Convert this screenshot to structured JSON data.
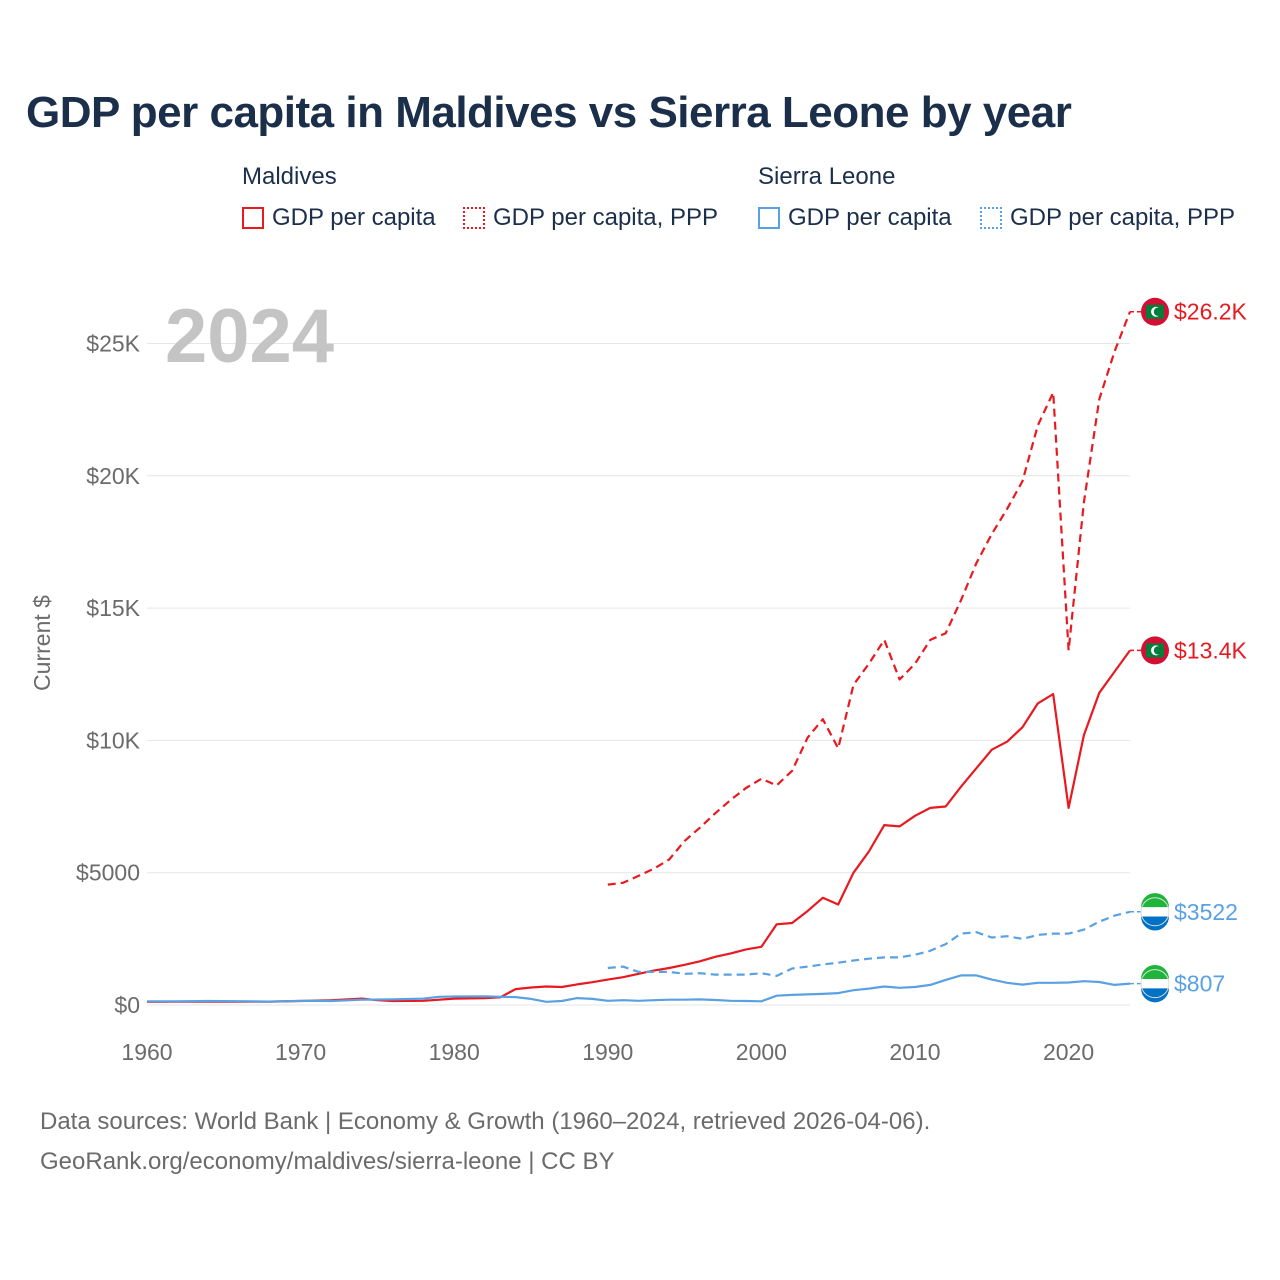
{
  "title": "GDP per capita in Maldives vs Sierra Leone by year",
  "legend": {
    "groups": [
      {
        "name": "Maldives",
        "items": [
          {
            "label": "GDP per capita",
            "color": "#e8191f",
            "style": "solid"
          },
          {
            "label": "GDP per capita, PPP",
            "color": "#e8191f",
            "style": "dotted"
          }
        ]
      },
      {
        "name": "Sierra Leone",
        "items": [
          {
            "label": "GDP per capita",
            "color": "#5aa1e3",
            "style": "solid"
          },
          {
            "label": "GDP per capita, PPP",
            "color": "#5aa1e3",
            "style": "dotted"
          }
        ]
      }
    ]
  },
  "footer": {
    "line1": "Data sources: World Bank | Economy & Growth (1960–2024, retrieved 2026-04-06).",
    "line2": "GeoRank.org/economy/maldives/sierra-leone | CC BY"
  },
  "chart_data": {
    "type": "line",
    "title": "GDP per capita in Maldives vs Sierra Leone by year",
    "year_label": "2024",
    "ylabel": "Current $",
    "xlabel": "",
    "xlim": [
      1960,
      2024
    ],
    "ylim": [
      0,
      27000
    ],
    "x_ticks": [
      1960,
      1970,
      1980,
      1990,
      2000,
      2010,
      2020
    ],
    "x_tick_labels": [
      "1960",
      "1970",
      "1980",
      "1990",
      "2000",
      "2010",
      "2020"
    ],
    "y_ticks": [
      0,
      5000,
      10000,
      15000,
      20000,
      25000
    ],
    "y_tick_labels": [
      "$0",
      "$5000",
      "$10K",
      "$15K",
      "$20K",
      "$25K"
    ],
    "grid": true,
    "series": [
      {
        "name": "Maldives GDP per capita, PPP",
        "country": "Maldives",
        "color": "#e8191f",
        "dash": true,
        "end_label": "$26.2K",
        "points": [
          [
            1990,
            4550
          ],
          [
            1991,
            4620
          ],
          [
            1992,
            4880
          ],
          [
            1993,
            5150
          ],
          [
            1994,
            5500
          ],
          [
            1995,
            6200
          ],
          [
            1996,
            6700
          ],
          [
            1997,
            7250
          ],
          [
            1998,
            7750
          ],
          [
            1999,
            8200
          ],
          [
            2000,
            8550
          ],
          [
            2001,
            8300
          ],
          [
            2002,
            8850
          ],
          [
            2003,
            10100
          ],
          [
            2004,
            10800
          ],
          [
            2005,
            9700
          ],
          [
            2006,
            12100
          ],
          [
            2007,
            12900
          ],
          [
            2008,
            13800
          ],
          [
            2009,
            12300
          ],
          [
            2010,
            12900
          ],
          [
            2011,
            13800
          ],
          [
            2012,
            14050
          ],
          [
            2013,
            15300
          ],
          [
            2014,
            16700
          ],
          [
            2015,
            17800
          ],
          [
            2016,
            18750
          ],
          [
            2017,
            19800
          ],
          [
            2018,
            21900
          ],
          [
            2019,
            23150
          ],
          [
            2020,
            13400
          ],
          [
            2021,
            19000
          ],
          [
            2022,
            22900
          ],
          [
            2023,
            24700
          ],
          [
            2024,
            26200
          ]
        ]
      },
      {
        "name": "Maldives GDP per capita",
        "country": "Maldives",
        "color": "#e8191f",
        "dash": false,
        "end_label": "$13.4K",
        "points": [
          [
            1960,
            120
          ],
          [
            1962,
            125
          ],
          [
            1964,
            130
          ],
          [
            1966,
            130
          ],
          [
            1968,
            130
          ],
          [
            1970,
            150
          ],
          [
            1972,
            180
          ],
          [
            1974,
            240
          ],
          [
            1975,
            180
          ],
          [
            1976,
            150
          ],
          [
            1978,
            160
          ],
          [
            1980,
            240
          ],
          [
            1982,
            260
          ],
          [
            1983,
            290
          ],
          [
            1984,
            600
          ],
          [
            1985,
            660
          ],
          [
            1986,
            700
          ],
          [
            1987,
            680
          ],
          [
            1988,
            780
          ],
          [
            1989,
            860
          ],
          [
            1990,
            960
          ],
          [
            1991,
            1050
          ],
          [
            1992,
            1180
          ],
          [
            1993,
            1300
          ],
          [
            1994,
            1400
          ],
          [
            1995,
            1520
          ],
          [
            1996,
            1650
          ],
          [
            1997,
            1820
          ],
          [
            1998,
            1950
          ],
          [
            1999,
            2100
          ],
          [
            2000,
            2200
          ],
          [
            2001,
            3050
          ],
          [
            2002,
            3100
          ],
          [
            2003,
            3550
          ],
          [
            2004,
            4050
          ],
          [
            2005,
            3800
          ],
          [
            2006,
            5000
          ],
          [
            2007,
            5800
          ],
          [
            2008,
            6800
          ],
          [
            2009,
            6750
          ],
          [
            2010,
            7150
          ],
          [
            2011,
            7450
          ],
          [
            2012,
            7500
          ],
          [
            2013,
            8250
          ],
          [
            2014,
            8950
          ],
          [
            2015,
            9650
          ],
          [
            2016,
            9950
          ],
          [
            2017,
            10500
          ],
          [
            2018,
            11400
          ],
          [
            2019,
            11750
          ],
          [
            2020,
            7450
          ],
          [
            2021,
            10200
          ],
          [
            2022,
            11800
          ],
          [
            2023,
            12600
          ],
          [
            2024,
            13400
          ]
        ]
      },
      {
        "name": "Sierra Leone GDP per capita, PPP",
        "country": "Sierra Leone",
        "color": "#5aa1e3",
        "dash": true,
        "end_label": "$3522",
        "points": [
          [
            1990,
            1400
          ],
          [
            1991,
            1450
          ],
          [
            1992,
            1250
          ],
          [
            1993,
            1250
          ],
          [
            1994,
            1250
          ],
          [
            1995,
            1180
          ],
          [
            1996,
            1200
          ],
          [
            1997,
            1150
          ],
          [
            1998,
            1150
          ],
          [
            1999,
            1150
          ],
          [
            2000,
            1200
          ],
          [
            2001,
            1100
          ],
          [
            2002,
            1380
          ],
          [
            2003,
            1450
          ],
          [
            2004,
            1530
          ],
          [
            2005,
            1600
          ],
          [
            2006,
            1680
          ],
          [
            2007,
            1750
          ],
          [
            2008,
            1800
          ],
          [
            2009,
            1800
          ],
          [
            2010,
            1900
          ],
          [
            2011,
            2050
          ],
          [
            2012,
            2300
          ],
          [
            2013,
            2700
          ],
          [
            2014,
            2750
          ],
          [
            2015,
            2550
          ],
          [
            2016,
            2600
          ],
          [
            2017,
            2500
          ],
          [
            2018,
            2650
          ],
          [
            2019,
            2700
          ],
          [
            2020,
            2700
          ],
          [
            2021,
            2850
          ],
          [
            2022,
            3150
          ],
          [
            2023,
            3380
          ],
          [
            2024,
            3522
          ]
        ]
      },
      {
        "name": "Sierra Leone GDP per capita",
        "country": "Sierra Leone",
        "color": "#5aa1e3",
        "dash": false,
        "end_label": "$807",
        "points": [
          [
            1960,
            140
          ],
          [
            1962,
            140
          ],
          [
            1964,
            150
          ],
          [
            1966,
            145
          ],
          [
            1968,
            130
          ],
          [
            1970,
            160
          ],
          [
            1972,
            150
          ],
          [
            1974,
            200
          ],
          [
            1976,
            210
          ],
          [
            1978,
            240
          ],
          [
            1979,
            310
          ],
          [
            1980,
            320
          ],
          [
            1982,
            330
          ],
          [
            1983,
            310
          ],
          [
            1984,
            300
          ],
          [
            1985,
            230
          ],
          [
            1986,
            120
          ],
          [
            1987,
            150
          ],
          [
            1988,
            260
          ],
          [
            1989,
            230
          ],
          [
            1990,
            160
          ],
          [
            1991,
            180
          ],
          [
            1992,
            160
          ],
          [
            1993,
            180
          ],
          [
            1994,
            200
          ],
          [
            1995,
            200
          ],
          [
            1996,
            210
          ],
          [
            1997,
            190
          ],
          [
            1998,
            160
          ],
          [
            1999,
            150
          ],
          [
            2000,
            140
          ],
          [
            2001,
            350
          ],
          [
            2002,
            380
          ],
          [
            2003,
            400
          ],
          [
            2004,
            420
          ],
          [
            2005,
            450
          ],
          [
            2006,
            560
          ],
          [
            2007,
            620
          ],
          [
            2008,
            700
          ],
          [
            2009,
            650
          ],
          [
            2010,
            680
          ],
          [
            2011,
            760
          ],
          [
            2012,
            950
          ],
          [
            2013,
            1120
          ],
          [
            2014,
            1120
          ],
          [
            2015,
            960
          ],
          [
            2016,
            840
          ],
          [
            2017,
            770
          ],
          [
            2018,
            840
          ],
          [
            2019,
            840
          ],
          [
            2020,
            850
          ],
          [
            2021,
            900
          ],
          [
            2022,
            870
          ],
          [
            2023,
            760
          ],
          [
            2024,
            807
          ]
        ]
      }
    ]
  }
}
